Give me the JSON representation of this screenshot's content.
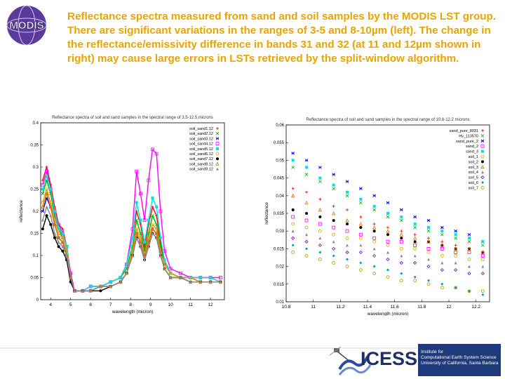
{
  "logo": {
    "text": "MODIS",
    "icon": "modis-globe-logo"
  },
  "headline": "Reflectance spectra measured from sand and soil samples by the MODIS LST group. There are significant variations in the ranges of 3-5 and 8-10µm (left). The change in the reflectance/emissivity difference in bands 31 and 32 (at 11 and 12µm shown in right) may cause large errors in LSTs retrieved by the split-window algorithm.",
  "footer": {
    "icess": "ICESS",
    "ucsb_lines": [
      "Institute for",
      "Computational Earth System Science",
      "University of California, Santa Barbara"
    ],
    "icons": [
      "satellite-icon",
      "icess-wave-logo"
    ]
  },
  "chart_data": [
    {
      "type": "line",
      "title": "Reflectance spectra of soil and sand samples in the spectral range of 3.5-12.5 microns",
      "xlabel": "wavelength (micron)",
      "ylabel": "reflectance",
      "xlim": [
        3.5,
        12.7
      ],
      "ylim": [
        0,
        0.4
      ],
      "xticks": [
        4,
        5,
        6,
        7,
        8,
        9,
        10,
        11,
        12
      ],
      "yticks": [
        0,
        0.05,
        0.1,
        0.15,
        0.2,
        0.25,
        0.3,
        0.35,
        0.4
      ],
      "xtick_labels": [
        "4",
        "5",
        "6",
        "7",
        "8",
        "9",
        "10",
        "11",
        "12"
      ],
      "ytick_labels": [
        "0",
        "0.05",
        "0.1",
        "0.15",
        "0.2",
        "0.25",
        "0.3",
        "0.35",
        "0.4"
      ],
      "legend_position": "top-right",
      "series": [
        {
          "name": "soil_sand1.12",
          "color": "#ff0000",
          "marker": "plus",
          "x": [
            3.6,
            3.8,
            4.0,
            4.2,
            4.4,
            4.6,
            4.8,
            5.0,
            5.2,
            5.6,
            6.0,
            6.5,
            7.0,
            7.5,
            7.8,
            8.1,
            8.3,
            8.5,
            8.7,
            8.9,
            9.1,
            9.3,
            9.5,
            9.7,
            10.0,
            10.5,
            11.0,
            11.5,
            12.0,
            12.5
          ],
          "values": [
            0.27,
            0.3,
            0.26,
            0.21,
            0.17,
            0.16,
            0.12,
            0.06,
            0.02,
            0.02,
            0.03,
            0.03,
            0.04,
            0.05,
            0.08,
            0.14,
            0.2,
            0.17,
            0.12,
            0.17,
            0.21,
            0.19,
            0.13,
            0.09,
            0.06,
            0.05,
            0.05,
            0.05,
            0.05,
            0.04
          ]
        },
        {
          "name": "soil_sand2.12",
          "color": "#00b000",
          "marker": "cross",
          "x": [
            3.6,
            3.8,
            4.0,
            4.2,
            4.4,
            4.6,
            4.8,
            5.0,
            5.2,
            5.6,
            6.0,
            6.5,
            7.0,
            7.5,
            7.8,
            8.1,
            8.3,
            8.5,
            8.7,
            8.9,
            9.1,
            9.3,
            9.5,
            9.7,
            10.0,
            10.5,
            11.0,
            11.5,
            12.0,
            12.5
          ],
          "values": [
            0.24,
            0.27,
            0.24,
            0.19,
            0.16,
            0.14,
            0.11,
            0.05,
            0.02,
            0.02,
            0.02,
            0.03,
            0.04,
            0.05,
            0.07,
            0.12,
            0.18,
            0.15,
            0.11,
            0.15,
            0.19,
            0.17,
            0.12,
            0.08,
            0.06,
            0.05,
            0.05,
            0.04,
            0.04,
            0.04
          ]
        },
        {
          "name": "soil_sand3.12",
          "color": "#0000ff",
          "marker": "star",
          "x": [
            3.6,
            3.8,
            4.0,
            4.2,
            4.4,
            4.6,
            4.8,
            5.0,
            5.2,
            5.6,
            6.0,
            6.5,
            7.0,
            7.5,
            7.8,
            8.1,
            8.3,
            8.5,
            8.7,
            8.9,
            9.1,
            9.3,
            9.5,
            9.7,
            10.0,
            10.5,
            11.0,
            11.5,
            12.0,
            12.5
          ],
          "values": [
            0.2,
            0.23,
            0.21,
            0.17,
            0.14,
            0.13,
            0.1,
            0.05,
            0.02,
            0.02,
            0.02,
            0.03,
            0.03,
            0.04,
            0.06,
            0.1,
            0.15,
            0.13,
            0.1,
            0.13,
            0.16,
            0.15,
            0.11,
            0.08,
            0.06,
            0.05,
            0.05,
            0.04,
            0.04,
            0.04
          ]
        },
        {
          "name": "soil_sand4.12",
          "color": "#ff00ff",
          "marker": "square",
          "x": [
            3.6,
            3.8,
            4.0,
            4.2,
            4.4,
            4.6,
            4.8,
            5.0,
            5.2,
            5.6,
            6.0,
            6.5,
            7.0,
            7.5,
            7.8,
            8.1,
            8.3,
            8.5,
            8.7,
            8.9,
            9.1,
            9.3,
            9.5,
            9.7,
            10.0,
            10.5,
            11.0,
            11.5,
            12.0,
            12.5
          ],
          "values": [
            0.26,
            0.29,
            0.25,
            0.2,
            0.17,
            0.15,
            0.12,
            0.06,
            0.02,
            0.02,
            0.03,
            0.03,
            0.04,
            0.05,
            0.08,
            0.16,
            0.29,
            0.24,
            0.18,
            0.27,
            0.34,
            0.33,
            0.2,
            0.11,
            0.07,
            0.06,
            0.05,
            0.05,
            0.05,
            0.05
          ]
        },
        {
          "name": "soil_sand5.12",
          "color": "#00e0e0",
          "marker": "filled-square",
          "x": [
            3.6,
            3.8,
            4.0,
            4.2,
            4.4,
            4.6,
            4.8,
            5.0,
            5.2,
            5.6,
            6.0,
            6.5,
            7.0,
            7.5,
            7.8,
            8.1,
            8.3,
            8.5,
            8.7,
            8.9,
            9.1,
            9.3,
            9.5,
            9.7,
            10.0,
            10.5,
            11.0,
            11.5,
            12.0,
            12.5
          ],
          "values": [
            0.25,
            0.28,
            0.25,
            0.2,
            0.16,
            0.15,
            0.12,
            0.05,
            0.02,
            0.02,
            0.03,
            0.03,
            0.04,
            0.05,
            0.08,
            0.14,
            0.22,
            0.18,
            0.13,
            0.18,
            0.23,
            0.21,
            0.14,
            0.09,
            0.06,
            0.05,
            0.05,
            0.05,
            0.05,
            0.04
          ]
        },
        {
          "name": "soil_sand6.12",
          "color": "#e0a000",
          "marker": "circle",
          "x": [
            3.6,
            3.8,
            4.0,
            4.2,
            4.4,
            4.6,
            4.8,
            5.0,
            5.2,
            5.6,
            6.0,
            6.5,
            7.0,
            7.5,
            7.8,
            8.1,
            8.3,
            8.5,
            8.7,
            8.9,
            9.1,
            9.3,
            9.5,
            9.7,
            10.0,
            10.5,
            11.0,
            11.5,
            12.0,
            12.5
          ],
          "values": [
            0.22,
            0.25,
            0.22,
            0.18,
            0.15,
            0.14,
            0.11,
            0.05,
            0.02,
            0.02,
            0.02,
            0.03,
            0.03,
            0.04,
            0.06,
            0.11,
            0.16,
            0.14,
            0.1,
            0.14,
            0.17,
            0.16,
            0.11,
            0.08,
            0.06,
            0.05,
            0.05,
            0.04,
            0.04,
            0.04
          ]
        },
        {
          "name": "soil_sand7.12",
          "color": "#000000",
          "marker": "filled-circle",
          "x": [
            3.6,
            3.8,
            4.0,
            4.2,
            4.4,
            4.6,
            4.8,
            5.0,
            5.2,
            5.6,
            6.0,
            6.5,
            7.0,
            7.5,
            7.8,
            8.1,
            8.3,
            8.5,
            8.7,
            8.9,
            9.1,
            9.3,
            9.5,
            9.7,
            10.0,
            10.5,
            11.0,
            11.5,
            12.0,
            12.5
          ],
          "values": [
            0.16,
            0.19,
            0.17,
            0.14,
            0.12,
            0.11,
            0.09,
            0.04,
            0.02,
            0.02,
            0.02,
            0.02,
            0.03,
            0.04,
            0.06,
            0.1,
            0.14,
            0.12,
            0.09,
            0.12,
            0.15,
            0.14,
            0.1,
            0.07,
            0.05,
            0.05,
            0.04,
            0.04,
            0.04,
            0.04
          ]
        },
        {
          "name": "soil_sand8.12",
          "color": "#e07000",
          "marker": "triangle",
          "x": [
            3.6,
            3.8,
            4.0,
            4.2,
            4.4,
            4.6,
            4.8,
            5.0,
            5.2,
            5.6,
            6.0,
            6.5,
            7.0,
            7.5,
            7.8,
            8.1,
            8.3,
            8.5,
            8.7,
            8.9,
            9.1,
            9.3,
            9.5,
            9.7,
            10.0,
            10.5,
            11.0,
            11.5,
            12.0,
            12.5
          ],
          "values": [
            0.21,
            0.24,
            0.21,
            0.17,
            0.14,
            0.13,
            0.1,
            0.05,
            0.02,
            0.02,
            0.02,
            0.03,
            0.03,
            0.04,
            0.06,
            0.1,
            0.15,
            0.13,
            0.1,
            0.13,
            0.16,
            0.15,
            0.1,
            0.07,
            0.05,
            0.05,
            0.04,
            0.04,
            0.04,
            0.04
          ]
        },
        {
          "name": "soil_sand9.12",
          "color": "#888888",
          "marker": "filled-triangle",
          "x": [
            3.6,
            3.8,
            4.0,
            4.2,
            4.4,
            4.6,
            4.8,
            5.0,
            5.2,
            5.6,
            6.0,
            6.5,
            7.0,
            7.5,
            7.8,
            8.1,
            8.3,
            8.5,
            8.7,
            8.9,
            9.1,
            9.3,
            9.5,
            9.7,
            10.0,
            10.5,
            11.0,
            11.5,
            12.0,
            12.5
          ],
          "values": [
            0.18,
            0.21,
            0.19,
            0.15,
            0.13,
            0.12,
            0.1,
            0.05,
            0.02,
            0.02,
            0.02,
            0.03,
            0.03,
            0.04,
            0.06,
            0.1,
            0.14,
            0.12,
            0.09,
            0.12,
            0.15,
            0.14,
            0.1,
            0.07,
            0.05,
            0.05,
            0.04,
            0.04,
            0.04,
            0.04
          ]
        }
      ]
    },
    {
      "type": "scatter",
      "title": "Reflectance spectra of soil and sand samples in the spectral range of 10.8-12.2 microns",
      "xlabel": "wavelength (micron)",
      "ylabel": "reflectance",
      "xlim": [
        10.8,
        12.3
      ],
      "ylim": [
        0.01,
        0.06
      ],
      "xticks": [
        10.8,
        11,
        11.2,
        11.4,
        11.6,
        11.8,
        12,
        12.2
      ],
      "yticks": [
        0.01,
        0.015,
        0.02,
        0.025,
        0.03,
        0.035,
        0.04,
        0.045,
        0.05,
        0.055,
        0.06
      ],
      "xtick_labels": [
        "10.8",
        "11",
        "11.2",
        "11.4",
        "11.6",
        "11.8",
        "12",
        "12.2"
      ],
      "ytick_labels": [
        "0.01",
        "0.015",
        "0.02",
        "0.025",
        "0.03",
        "0.035",
        "0.04",
        "0.045",
        "0.05",
        "0.055",
        "0.06"
      ],
      "legend_position": "top-right",
      "x": [
        10.85,
        10.95,
        11.05,
        11.15,
        11.25,
        11.35,
        11.45,
        11.55,
        11.65,
        11.75,
        11.85,
        11.95,
        12.05,
        12.15,
        12.25
      ],
      "series": [
        {
          "name": "sand_pure_8031",
          "color": "#ff0000",
          "marker": "plus",
          "values": [
            0.042,
            0.041,
            0.039,
            0.037,
            0.036,
            0.034,
            0.032,
            0.031,
            0.03,
            0.029,
            0.028,
            0.027,
            0.026,
            0.025,
            0.024
          ]
        },
        {
          "name": "Hv_113570",
          "color": "#00b000",
          "marker": "cross",
          "values": [
            0.048,
            0.046,
            0.044,
            0.042,
            0.04,
            0.038,
            0.036,
            0.034,
            0.033,
            0.031,
            0.03,
            0.029,
            0.028,
            0.027,
            0.026
          ]
        },
        {
          "name": "sand_pure_2",
          "color": "#0000ff",
          "marker": "star",
          "values": [
            0.052,
            0.05,
            0.048,
            0.046,
            0.044,
            0.042,
            0.04,
            0.038,
            0.036,
            0.034,
            0.033,
            0.031,
            0.03,
            0.029,
            0.027
          ]
        },
        {
          "name": "sand_2",
          "color": "#ff00ff",
          "marker": "square",
          "values": [
            0.034,
            0.033,
            0.032,
            0.031,
            0.03,
            0.029,
            0.028,
            0.027,
            0.027,
            0.026,
            0.025,
            0.025,
            0.024,
            0.024,
            0.023
          ]
        },
        {
          "name": "sand_3",
          "color": "#00e0e0",
          "marker": "filled-square",
          "values": [
            0.05,
            0.048,
            0.045,
            0.043,
            0.041,
            0.039,
            0.037,
            0.035,
            0.034,
            0.032,
            0.031,
            0.03,
            0.029,
            0.028,
            0.027
          ]
        },
        {
          "name": "soil_1",
          "color": "#e0a000",
          "marker": "circle",
          "values": [
            0.032,
            0.031,
            0.03,
            0.029,
            0.028,
            0.028,
            0.027,
            0.026,
            0.025,
            0.025,
            0.024,
            0.023,
            0.023,
            0.022,
            0.022
          ]
        },
        {
          "name": "soil_2",
          "color": "#000000",
          "marker": "filled-circle",
          "values": [
            0.036,
            0.035,
            0.034,
            0.033,
            0.032,
            0.031,
            0.03,
            0.029,
            0.028,
            0.027,
            0.027,
            0.026,
            0.025,
            0.025,
            0.024
          ]
        },
        {
          "name": "soil_3",
          "color": "#e07000",
          "marker": "triangle",
          "values": [
            0.04,
            0.038,
            0.036,
            0.035,
            0.033,
            0.032,
            0.031,
            0.03,
            0.029,
            0.028,
            0.027,
            0.026,
            0.025,
            0.025,
            0.024
          ]
        },
        {
          "name": "soil_4",
          "color": "#888888",
          "marker": "filled-triangle",
          "values": [
            0.03,
            0.029,
            0.028,
            0.027,
            0.026,
            0.026,
            0.025,
            0.024,
            0.023,
            0.023,
            0.022,
            0.021,
            0.021,
            0.02,
            0.02
          ]
        },
        {
          "name": "soil_5",
          "color": "#7a00c0",
          "marker": "diamond",
          "values": [
            0.028,
            0.027,
            0.026,
            0.025,
            0.024,
            0.024,
            0.023,
            0.022,
            0.021,
            0.021,
            0.02,
            0.019,
            0.019,
            0.018,
            0.018
          ]
        },
        {
          "name": "soil_6",
          "color": "#00a0a0",
          "marker": "filled-diamond",
          "values": [
            0.026,
            0.025,
            0.024,
            0.023,
            0.022,
            0.021,
            0.02,
            0.019,
            0.018,
            0.017,
            0.016,
            0.015,
            0.014,
            0.013,
            0.012
          ]
        },
        {
          "name": "soil_7",
          "color": "#a0a000",
          "marker": "circle",
          "values": [
            0.024,
            0.023,
            0.022,
            0.021,
            0.02,
            0.019,
            0.018,
            0.017,
            0.016,
            0.016,
            0.015,
            0.014,
            0.014,
            0.013,
            0.013
          ]
        }
      ]
    }
  ]
}
